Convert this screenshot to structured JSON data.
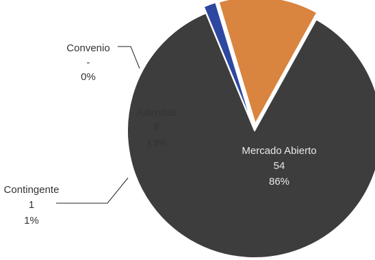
{
  "chart_data": {
    "type": "pie",
    "title": "",
    "slices": [
      {
        "name": "Mercado Abierto",
        "value": 54,
        "value_label": "54",
        "percent_label": "86%",
        "color": "#3d3d3d",
        "exploded": false
      },
      {
        "name": "Contingente",
        "value": 1,
        "value_label": "1",
        "percent_label": "1%",
        "color": "#2e47a0",
        "exploded": true
      },
      {
        "name": "Adendas",
        "value": 8,
        "value_label": "8",
        "percent_label": "13%",
        "color": "#d9843f",
        "exploded": true
      },
      {
        "name": "Convenio",
        "value": 0,
        "value_label": "-",
        "percent_label": "0%",
        "color": "#9a9a9a",
        "exploded": true
      }
    ],
    "legend": "none",
    "label_style": "name, value, percent"
  }
}
